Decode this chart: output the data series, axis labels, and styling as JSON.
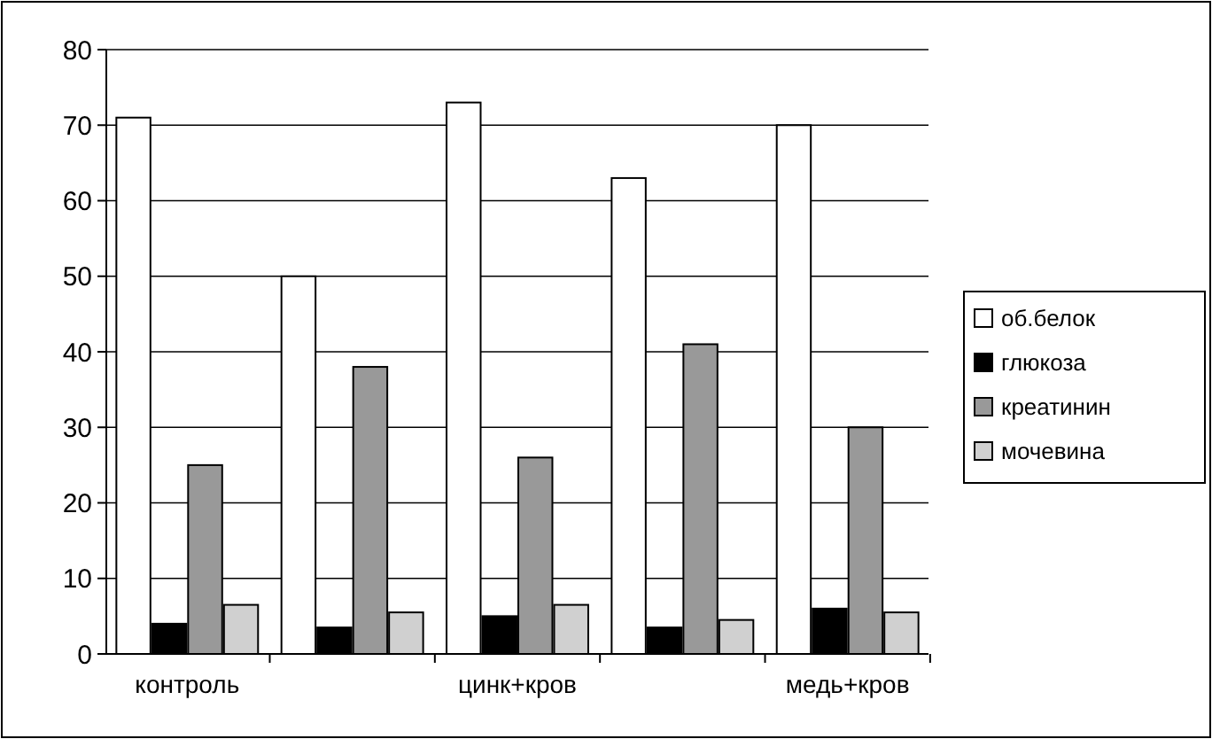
{
  "chart_data": {
    "type": "bar",
    "categories": [
      "контроль",
      null,
      "цинк+кров",
      null,
      "медь+кров"
    ],
    "series": [
      {
        "name": "об.белок",
        "color": "#ffffff",
        "values": [
          71,
          50,
          73,
          63,
          70
        ]
      },
      {
        "name": "глюкоза",
        "color": "#000000",
        "values": [
          4,
          3.5,
          5,
          3.5,
          6
        ]
      },
      {
        "name": "креатинин",
        "color": "#999999",
        "values": [
          25,
          38,
          26,
          41,
          30
        ]
      },
      {
        "name": "мочевина",
        "color": "#d0d0d0",
        "values": [
          6.5,
          5.5,
          6.5,
          4.5,
          5.5
        ]
      }
    ],
    "ylim": [
      0,
      80
    ],
    "yticks": [
      0,
      10,
      20,
      30,
      40,
      50,
      60,
      70,
      80
    ],
    "grid": "y",
    "legend": "right"
  }
}
